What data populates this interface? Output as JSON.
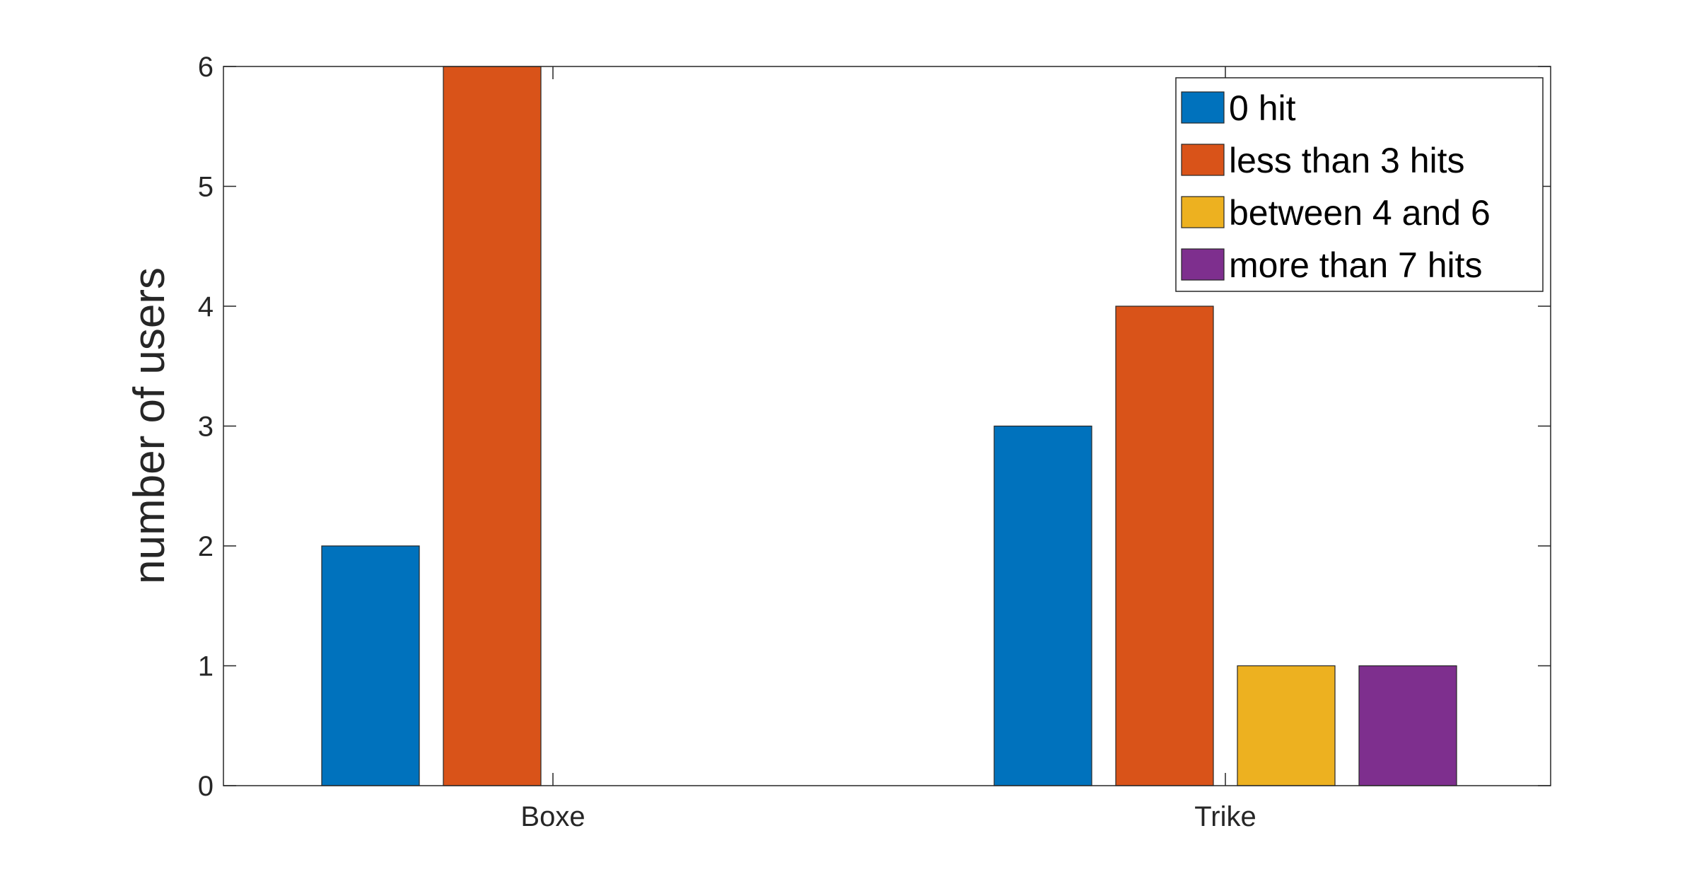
{
  "chart_data": {
    "type": "bar",
    "categories": [
      "Boxe",
      "Trike"
    ],
    "series": [
      {
        "name": "0 hit",
        "values": [
          2,
          3
        ],
        "color": "#0072BD"
      },
      {
        "name": "less than 3 hits",
        "values": [
          6,
          4
        ],
        "color": "#D95319"
      },
      {
        "name": "between 4 and 6",
        "values": [
          0,
          1
        ],
        "color": "#EDB120"
      },
      {
        "name": "more than 7 hits",
        "values": [
          0,
          1
        ],
        "color": "#7E2F8E"
      }
    ],
    "xlabel": "",
    "ylabel": "number of users",
    "ylim": [
      0,
      6
    ],
    "yticks": [
      0,
      1,
      2,
      3,
      4,
      5,
      6
    ],
    "grid": false,
    "legend_position": "top-right"
  }
}
